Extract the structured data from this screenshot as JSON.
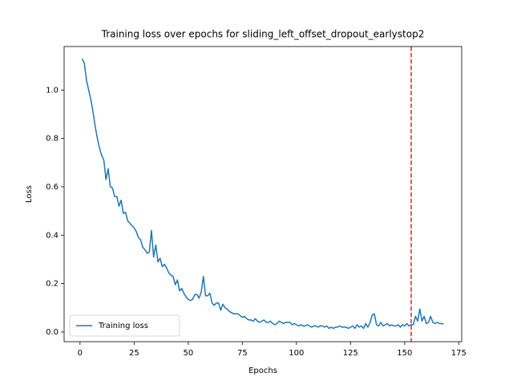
{
  "chart_data": {
    "type": "line",
    "title": "Training loss over epochs for sliding_left_offset_dropout_earlystop2",
    "x_label": "Epochs",
    "y_label": "Loss",
    "x": [
      1,
      2,
      3,
      4,
      5,
      6,
      7,
      8,
      9,
      10,
      11,
      12,
      13,
      14,
      15,
      16,
      17,
      18,
      19,
      20,
      21,
      22,
      23,
      24,
      25,
      26,
      27,
      28,
      29,
      30,
      31,
      32,
      33,
      34,
      35,
      36,
      37,
      38,
      39,
      40,
      41,
      42,
      43,
      44,
      45,
      46,
      47,
      48,
      49,
      50,
      51,
      52,
      53,
      54,
      55,
      56,
      57,
      58,
      59,
      60,
      61,
      62,
      63,
      64,
      65,
      66,
      67,
      68,
      69,
      70,
      71,
      72,
      73,
      74,
      75,
      76,
      77,
      78,
      79,
      80,
      81,
      82,
      83,
      84,
      85,
      86,
      87,
      88,
      89,
      90,
      91,
      92,
      93,
      94,
      95,
      96,
      97,
      98,
      99,
      100,
      101,
      102,
      103,
      104,
      105,
      106,
      107,
      108,
      109,
      110,
      111,
      112,
      113,
      114,
      115,
      116,
      117,
      118,
      119,
      120,
      121,
      122,
      123,
      124,
      125,
      126,
      127,
      128,
      129,
      130,
      131,
      132,
      133,
      134,
      135,
      136,
      137,
      138,
      139,
      140,
      141,
      142,
      143,
      144,
      145,
      146,
      147,
      148,
      149,
      150,
      151,
      152,
      153,
      154,
      155,
      156,
      157,
      158,
      159,
      160,
      161,
      162,
      163,
      164,
      165,
      166,
      167,
      168
    ],
    "series": [
      {
        "name": "Training loss",
        "color": "#1f77b4",
        "values": [
          1.13,
          1.11,
          1.04,
          1.0,
          0.96,
          0.91,
          0.85,
          0.8,
          0.76,
          0.73,
          0.71,
          0.63,
          0.675,
          0.6,
          0.595,
          0.56,
          0.56,
          0.52,
          0.545,
          0.49,
          0.495,
          0.46,
          0.45,
          0.44,
          0.43,
          0.415,
          0.39,
          0.38,
          0.35,
          0.34,
          0.325,
          0.33,
          0.42,
          0.31,
          0.36,
          0.29,
          0.305,
          0.27,
          0.28,
          0.265,
          0.245,
          0.235,
          0.23,
          0.195,
          0.215,
          0.17,
          0.18,
          0.16,
          0.145,
          0.135,
          0.13,
          0.135,
          0.155,
          0.155,
          0.14,
          0.165,
          0.23,
          0.15,
          0.15,
          0.16,
          0.12,
          0.11,
          0.12,
          0.12,
          0.09,
          0.115,
          0.1,
          0.095,
          0.085,
          0.08,
          0.075,
          0.075,
          0.075,
          0.068,
          0.06,
          0.065,
          0.055,
          0.05,
          0.05,
          0.045,
          0.055,
          0.045,
          0.04,
          0.045,
          0.05,
          0.04,
          0.04,
          0.045,
          0.035,
          0.03,
          0.035,
          0.045,
          0.04,
          0.035,
          0.04,
          0.04,
          0.04,
          0.03,
          0.035,
          0.03,
          0.025,
          0.03,
          0.025,
          0.025,
          0.03,
          0.025,
          0.02,
          0.025,
          0.025,
          0.02,
          0.025,
          0.025,
          0.02,
          0.025,
          0.015,
          0.02,
          0.015,
          0.02,
          0.02,
          0.025,
          0.02,
          0.02,
          0.02,
          0.015,
          0.02,
          0.025,
          0.015,
          0.03,
          0.02,
          0.025,
          0.015,
          0.035,
          0.02,
          0.04,
          0.07,
          0.075,
          0.03,
          0.025,
          0.04,
          0.025,
          0.03,
          0.035,
          0.025,
          0.03,
          0.025,
          0.025,
          0.03,
          0.02,
          0.03,
          0.025,
          0.035,
          0.025,
          0.03,
          0.03,
          0.065,
          0.045,
          0.095,
          0.045,
          0.065,
          0.035,
          0.04,
          0.065,
          0.04,
          0.035,
          0.04,
          0.035,
          0.035,
          0.033
        ]
      }
    ],
    "vline": 153,
    "vline_color": "#d62728",
    "xlim": [
      -7.35,
      176.35
    ],
    "ylim": [
      -0.04,
      1.18
    ],
    "xticks": [
      0,
      25,
      50,
      75,
      100,
      125,
      150,
      175
    ],
    "yticks": [
      {
        "value": 0,
        "label": "0.0"
      },
      0.2,
      0.4,
      0.6,
      0.8,
      {
        "value": 1,
        "label": "1.0"
      }
    ],
    "legend": "lower left"
  }
}
